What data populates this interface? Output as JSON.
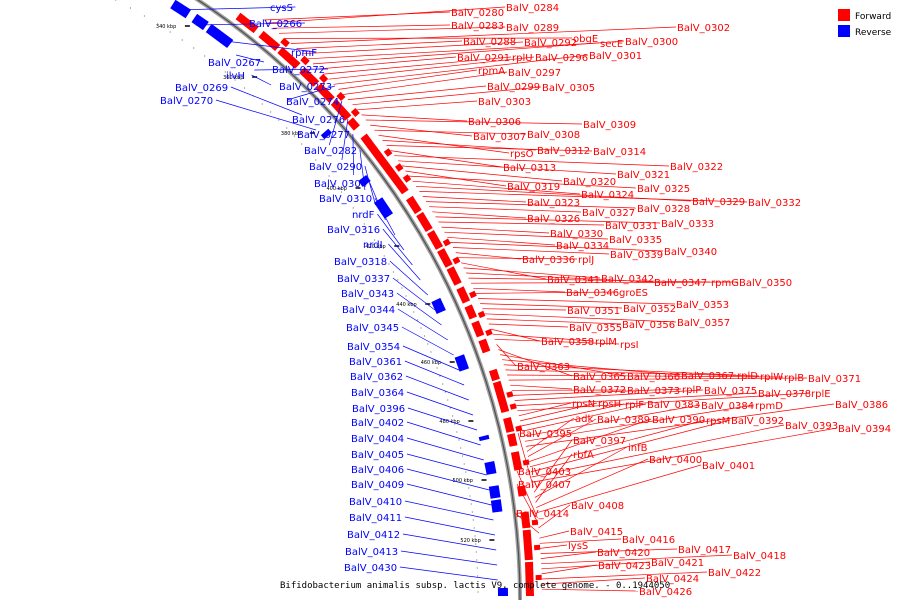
{
  "caption": "Bifidobacterium animalis subsp. lactis V9, complete genome. - 0..1944050",
  "legend": {
    "items": [
      {
        "label": "Forward",
        "color": "#ff0000"
      },
      {
        "label": "Reverse",
        "color": "#0000ff"
      }
    ]
  },
  "colors": {
    "forward": "#ff0000",
    "reverse": "#0000ff",
    "backbone": "#808080"
  },
  "ticks": [
    "340 kbp",
    "360 kbp",
    "380 kbp",
    "400 kbp",
    "420 kbp",
    "440 kbp",
    "460 kbp",
    "480 kbp",
    "500 kbp",
    "520 kbp"
  ],
  "forward_labels": [
    "BalV_0280",
    "BalV_0284",
    "BalV_0283",
    "BalV_0289",
    "obgE",
    "BalV_0302",
    "BalV_0288",
    "BalV_0292",
    "secE",
    "BalV_0300",
    "BalV_0291",
    "rplU",
    "BalV_0296",
    "BalV_0301",
    "rpmA",
    "BalV_0297",
    "BalV_0299",
    "BalV_0305",
    "BalV_0303",
    "BalV_0306",
    "BalV_0309",
    "BalV_0307",
    "BalV_0308",
    "rpsO",
    "BalV_0312",
    "BalV_0314",
    "BalV_0313",
    "BalV_0322",
    "BalV_0321",
    "BalV_0320",
    "BalV_0319",
    "BalV_0325",
    "BalV_0324",
    "BalV_0329",
    "BalV_0332",
    "BalV_0323",
    "BalV_0328",
    "BalV_0327",
    "BalV_0326",
    "BalV_0333",
    "BalV_0331",
    "BalV_0330",
    "BalV_0335",
    "BalV_0334",
    "BalV_0340",
    "BalV_0339",
    "BalV_0336",
    "rplJ",
    "BalV_0341",
    "BalV_0342",
    "BalV_0347",
    "rpmG",
    "BalV_0350",
    "BalV_0346",
    "groES",
    "BalV_0353",
    "BalV_0352",
    "BalV_0351",
    "BalV_0357",
    "BalV_0356",
    "BalV_0355",
    "BalV_0358",
    "rplM",
    "rpsI",
    "BalV_0363",
    "BalV_0365",
    "BalV_0366",
    "BalV_0367",
    "rplD",
    "rplW",
    "rplB",
    "BalV_0371",
    "BalV_0372",
    "BalV_0373",
    "rplP",
    "BalV_0375",
    "BalV_0378",
    "rplE",
    "rpsN",
    "rpsH",
    "rplF",
    "BalV_0383",
    "BalV_0384",
    "rpmD",
    "BalV_0386",
    "adk",
    "BalV_0389",
    "BalV_0390",
    "rpsM",
    "BalV_0392",
    "BalV_0393",
    "BalV_0394",
    "BalV_0395",
    "BalV_0397",
    "infB",
    "rbfA",
    "BalV_0400",
    "BalV_0401",
    "BalV_0403",
    "BalV_0407",
    "BalV_0408",
    "BalV_0414",
    "BalV_0415",
    "BalV_0416",
    "lysS",
    "BalV_0417",
    "BalV_0420",
    "BalV_0418",
    "BalV_0421",
    "BalV_0423",
    "BalV_0422",
    "BalV_0424",
    "BalV_0426"
  ],
  "reverse_labels": [
    "cysS",
    "BalV_0266",
    "rpmF",
    "BalV_0267",
    "BalV_0272",
    "ilvH",
    "BalV_0273",
    "BalV_0269",
    "BalV_0270",
    "BalV_0274",
    "BalV_0276",
    "BalV_0277",
    "BalV_0282",
    "BalV_0290",
    "BalV_0304",
    "BalV_0310",
    "nrdF",
    "BalV_0316",
    "nrdI",
    "BalV_0318",
    "BalV_0337",
    "BalV_0343",
    "BalV_0344",
    "BalV_0345",
    "BalV_0354",
    "BalV_0361",
    "BalV_0362",
    "BalV_0364",
    "BalV_0396",
    "BalV_0402",
    "BalV_0404",
    "BalV_0405",
    "BalV_0406",
    "BalV_0409",
    "BalV_0410",
    "BalV_0411",
    "BalV_0412",
    "BalV_0413",
    "BalV_0430"
  ]
}
